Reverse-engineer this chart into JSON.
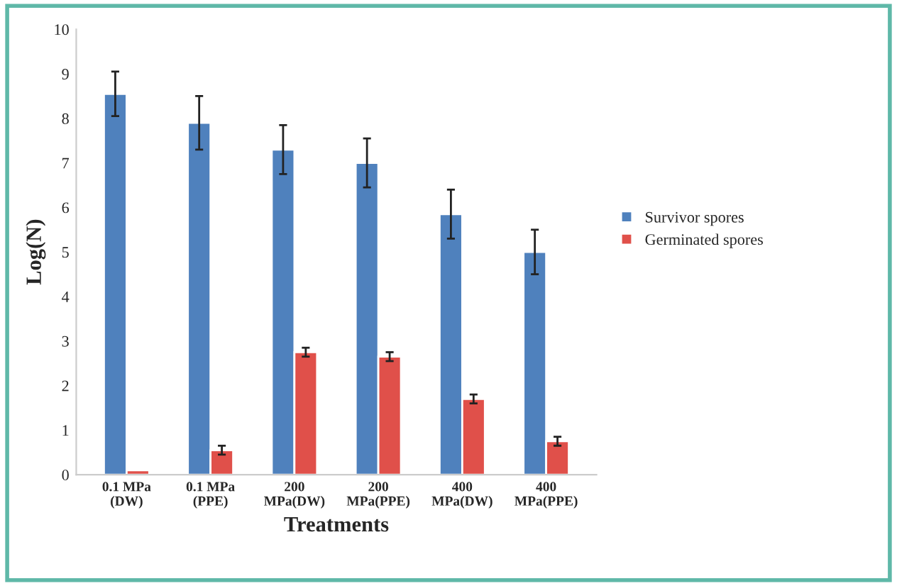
{
  "chart_data": {
    "type": "bar",
    "xlabel": "Treatments",
    "ylabel": "Log(N)",
    "categories": [
      "0.1 MPa\n(DW)",
      "0.1 MPa\n(PPE)",
      "200\nMPa(DW)",
      "200\nMPa(PPE)",
      "400\nMPa(DW)",
      "400\nMPa(PPE)"
    ],
    "series": [
      {
        "name": "Survivor spores",
        "color": "#4f81bd",
        "values": [
          8.55,
          7.9,
          7.3,
          7.0,
          5.85,
          5.0
        ],
        "errors": [
          0.5,
          0.6,
          0.55,
          0.55,
          0.55,
          0.5
        ]
      },
      {
        "name": "Germinated spores",
        "color": "#e0504a",
        "values": [
          0.1,
          0.55,
          2.75,
          2.65,
          1.7,
          0.75
        ],
        "errors": [
          null,
          0.1,
          0.1,
          0.1,
          0.1,
          0.1
        ]
      }
    ],
    "ylim": [
      0,
      10
    ],
    "yticks": [
      0,
      1,
      2,
      3,
      4,
      5,
      6,
      7,
      8,
      9,
      10
    ],
    "grid": false,
    "legend": "right"
  }
}
